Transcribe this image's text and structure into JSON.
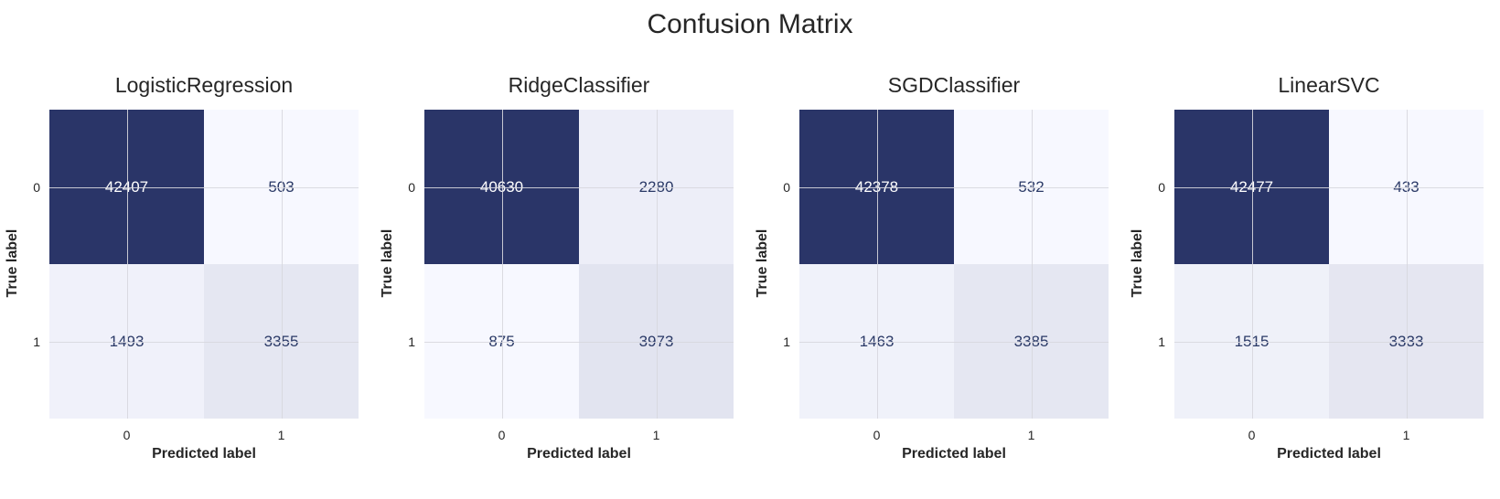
{
  "suptitle": "Confusion Matrix",
  "chart_data": [
    {
      "type": "heatmap",
      "title": "LogisticRegression",
      "xlabel": "Predicted label",
      "ylabel": "True label",
      "x_ticks": [
        "0",
        "1"
      ],
      "y_ticks": [
        "0",
        "1"
      ],
      "values": [
        [
          42407,
          503
        ],
        [
          1493,
          3355
        ]
      ]
    },
    {
      "type": "heatmap",
      "title": "RidgeClassifier",
      "xlabel": "Predicted label",
      "ylabel": "True label",
      "x_ticks": [
        "0",
        "1"
      ],
      "y_ticks": [
        "0",
        "1"
      ],
      "values": [
        [
          40630,
          2280
        ],
        [
          875,
          3973
        ]
      ]
    },
    {
      "type": "heatmap",
      "title": "SGDClassifier",
      "xlabel": "Predicted label",
      "ylabel": "True label",
      "x_ticks": [
        "0",
        "1"
      ],
      "y_ticks": [
        "0",
        "1"
      ],
      "values": [
        [
          42378,
          532
        ],
        [
          1463,
          3385
        ]
      ]
    },
    {
      "type": "heatmap",
      "title": "LinearSVC",
      "xlabel": "Predicted label",
      "ylabel": "True label",
      "x_ticks": [
        "0",
        "1"
      ],
      "y_ticks": [
        "0",
        "1"
      ],
      "values": [
        [
          42477,
          433
        ],
        [
          1515,
          3333
        ]
      ]
    }
  ],
  "colors": {
    "low": "#f7f8ff",
    "high": "#2a3568",
    "text_light": "#ffffff",
    "text_dark": "#2b3a67"
  }
}
